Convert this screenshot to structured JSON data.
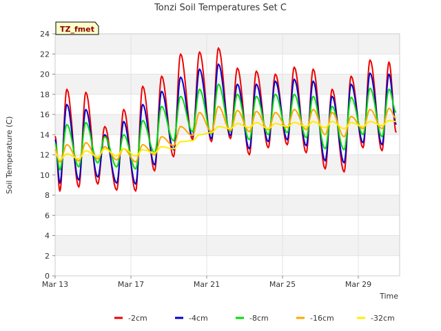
{
  "chart_data": {
    "type": "line",
    "title": "Tonzi Soil Temperatures Set C",
    "badge": "TZ_fmet",
    "xlabel": "Time",
    "ylabel": "Soil Temperature (C)",
    "x_range_days": [
      "2024-03-13",
      "2024-03-31"
    ],
    "x_ticks": [
      {
        "label": "Mar 13",
        "day": 0
      },
      {
        "label": "Mar 17",
        "day": 4
      },
      {
        "label": "Mar 21",
        "day": 8
      },
      {
        "label": "Mar 25",
        "day": 12
      },
      {
        "label": "Mar 29",
        "day": 16
      }
    ],
    "ylim": [
      0,
      24
    ],
    "y_ticks": [
      0,
      2,
      4,
      6,
      8,
      10,
      12,
      14,
      16,
      18,
      20,
      22,
      24
    ],
    "grid": true,
    "shaded_bands": true,
    "legend_position": "bottom",
    "series": [
      {
        "name": "-2cm",
        "color": "#ee0000",
        "daily_max": [
          18.5,
          18.2,
          14.8,
          16.5,
          18.8,
          19.8,
          22.0,
          22.2,
          22.6,
          20.6,
          20.3,
          20.0,
          20.7,
          20.5,
          18.5,
          19.8,
          21.4,
          21.2
        ],
        "daily_min": [
          8.4,
          8.8,
          9.1,
          8.5,
          8.4,
          10.4,
          11.8,
          13.5,
          13.3,
          13.6,
          12.0,
          12.7,
          13.0,
          12.2,
          10.6,
          10.3,
          12.7,
          12.4
        ],
        "end_value": 14.2
      },
      {
        "name": "-4cm",
        "color": "#0000cc",
        "daily_max": [
          17.0,
          16.5,
          14.0,
          15.3,
          17.0,
          18.3,
          19.7,
          20.5,
          21.0,
          19.0,
          19.0,
          19.3,
          19.5,
          19.3,
          17.8,
          19.0,
          20.1,
          20.0
        ],
        "daily_min": [
          9.2,
          9.5,
          9.8,
          9.2,
          9.1,
          11.0,
          12.5,
          13.8,
          13.6,
          13.9,
          12.6,
          13.3,
          13.5,
          12.9,
          11.4,
          11.2,
          13.2,
          13.0
        ],
        "end_value": 15.0
      },
      {
        "name": "-8cm",
        "color": "#00dd00",
        "daily_max": [
          15.0,
          15.2,
          13.8,
          14.0,
          15.4,
          16.8,
          17.8,
          18.5,
          19.0,
          18.0,
          17.8,
          18.0,
          18.0,
          17.8,
          16.8,
          17.7,
          18.6,
          18.5
        ],
        "daily_min": [
          10.5,
          10.8,
          11.2,
          10.8,
          10.6,
          12.2,
          13.4,
          14.3,
          14.1,
          14.3,
          13.5,
          14.0,
          14.2,
          13.7,
          12.6,
          12.5,
          14.0,
          13.8
        ],
        "end_value": 16.2
      },
      {
        "name": "-16cm",
        "color": "#ffa500",
        "daily_max": [
          13.0,
          13.2,
          12.8,
          12.6,
          13.0,
          13.8,
          14.8,
          16.2,
          16.8,
          16.4,
          16.3,
          16.2,
          16.5,
          16.5,
          16.2,
          15.8,
          16.5,
          16.6
        ],
        "daily_min": [
          11.3,
          11.4,
          11.6,
          11.5,
          11.3,
          12.0,
          12.9,
          13.9,
          14.3,
          14.4,
          14.3,
          14.5,
          14.7,
          14.5,
          14.0,
          13.8,
          14.6,
          14.6
        ],
        "end_value": 15.6
      },
      {
        "name": "-32cm",
        "color": "#ffee00",
        "daily_max": [
          12.1,
          12.4,
          12.6,
          12.6,
          12.5,
          12.8,
          13.3,
          14.0,
          14.8,
          15.1,
          15.2,
          15.1,
          15.2,
          15.3,
          15.3,
          15.2,
          15.3,
          15.4
        ],
        "daily_min": [
          11.5,
          11.6,
          11.8,
          11.9,
          11.9,
          12.2,
          12.6,
          13.4,
          14.2,
          14.6,
          14.7,
          14.6,
          14.8,
          14.8,
          14.7,
          14.6,
          14.8,
          14.9
        ],
        "end_value": 15.3
      }
    ]
  }
}
